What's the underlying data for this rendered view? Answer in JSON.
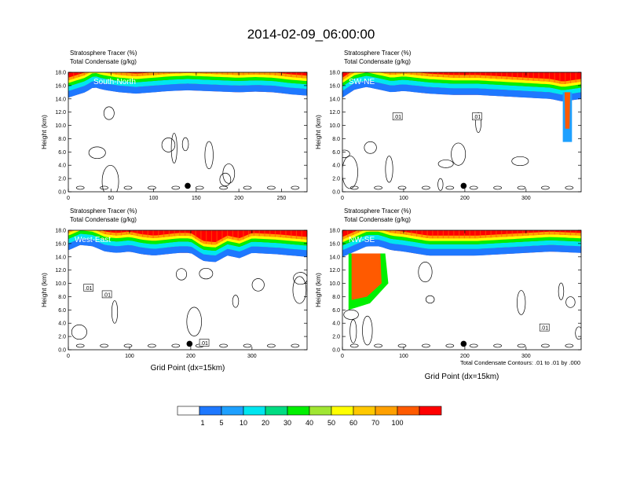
{
  "figure": {
    "title": "2014-02-09_06:00:00",
    "note": "Total Condensate Contours: .01 to .01 by .000",
    "colorbar": {
      "colors": [
        "#ffffff",
        "#1e78ff",
        "#1ea0ff",
        "#00e6f0",
        "#00dc82",
        "#00f000",
        "#a0e632",
        "#ffff00",
        "#ffc800",
        "#ffa000",
        "#ff5a00",
        "#ff0000"
      ],
      "labels": [
        "1",
        "5",
        "10",
        "20",
        "30",
        "40",
        "50",
        "60",
        "70",
        "100"
      ]
    }
  },
  "chart_data": [
    {
      "type": "heatmap",
      "name": "South-North",
      "title_lines": [
        "Stratosphere Tracer   (%)",
        "Total Condensate   (g/kg)"
      ],
      "ylabel": "Height (km)",
      "xlabel": "",
      "xlim": [
        0,
        280
      ],
      "ylim": [
        0,
        18
      ],
      "xticks": [
        0,
        50,
        100,
        150,
        200,
        250
      ],
      "yticks": [
        "0.0",
        "2.0",
        "4.0",
        "6.0",
        "8.0",
        "10.0",
        "12.0",
        "14.0",
        "16.0",
        "18.0"
      ],
      "tropopause_km": [
        [
          0,
          14.2
        ],
        [
          10,
          14.6
        ],
        [
          20,
          15.0
        ],
        [
          30,
          15.8
        ],
        [
          40,
          15.4
        ],
        [
          60,
          15.0
        ],
        [
          80,
          14.8
        ],
        [
          100,
          15.0
        ],
        [
          120,
          15.2
        ],
        [
          140,
          15.3
        ],
        [
          160,
          15.2
        ],
        [
          180,
          15.1
        ],
        [
          200,
          15.0
        ],
        [
          220,
          15.1
        ],
        [
          240,
          15.0
        ],
        [
          260,
          14.7
        ],
        [
          280,
          14.5
        ]
      ],
      "intrusions": [],
      "contour_labels": [],
      "marker_x": 140
    },
    {
      "type": "heatmap",
      "name": "SW-NE",
      "title_lines": [
        "Stratosphere Tracer   (%)",
        "Total Condensate   (g/kg)"
      ],
      "ylabel": "Height (km)",
      "xlabel": "",
      "xlim": [
        0,
        390
      ],
      "ylim": [
        0,
        18
      ],
      "xticks": [
        0,
        100,
        200,
        300
      ],
      "yticks": [
        "0.0",
        "2.0",
        "4.0",
        "6.0",
        "8.0",
        "10.0",
        "12.0",
        "14.0",
        "16.0",
        "18.0"
      ],
      "tropopause_km": [
        [
          0,
          14.2
        ],
        [
          20,
          15.4
        ],
        [
          40,
          15.8
        ],
        [
          60,
          15.4
        ],
        [
          80,
          15.0
        ],
        [
          100,
          15.2
        ],
        [
          140,
          14.8
        ],
        [
          180,
          14.6
        ],
        [
          220,
          14.6
        ],
        [
          260,
          14.4
        ],
        [
          300,
          14.2
        ],
        [
          340,
          14.0
        ],
        [
          360,
          13.6
        ],
        [
          390,
          14.0
        ]
      ],
      "intrusions": [
        {
          "x0": 360,
          "x1": 375,
          "top": 15.0,
          "bottom": 7.5
        }
      ],
      "contour_labels": [
        {
          "x": 90,
          "y": 11.3,
          "text": ".01"
        },
        {
          "x": 220,
          "y": 11.3,
          "text": ".01"
        }
      ],
      "marker_x": 198
    },
    {
      "type": "heatmap",
      "name": "West-East",
      "title_lines": [
        "Stratosphere Tracer   (%)",
        "Total Condensate   (g/kg)"
      ],
      "ylabel": "Height (km)",
      "xlabel": "Grid Point (dx=15km)",
      "xlim": [
        0,
        390
      ],
      "ylim": [
        0,
        18
      ],
      "xticks": [
        0,
        100,
        200,
        300
      ],
      "yticks": [
        "0.0",
        "2.0",
        "4.0",
        "6.0",
        "8.0",
        "10.0",
        "12.0",
        "14.0",
        "16.0",
        "18.0"
      ],
      "tropopause_km": [
        [
          0,
          15.0
        ],
        [
          20,
          15.8
        ],
        [
          40,
          15.6
        ],
        [
          60,
          14.8
        ],
        [
          80,
          14.6
        ],
        [
          100,
          14.8
        ],
        [
          120,
          14.4
        ],
        [
          140,
          14.2
        ],
        [
          160,
          14.4
        ],
        [
          180,
          14.6
        ],
        [
          200,
          14.6
        ],
        [
          220,
          13.4
        ],
        [
          240,
          13.2
        ],
        [
          260,
          14.2
        ],
        [
          280,
          13.8
        ],
        [
          300,
          14.6
        ],
        [
          340,
          14.4
        ],
        [
          390,
          14.0
        ]
      ],
      "intrusions": [],
      "contour_labels": [
        {
          "x": 33,
          "y": 9.3,
          "text": ".01"
        },
        {
          "x": 63,
          "y": 8.3,
          "text": ".01"
        },
        {
          "x": 222,
          "y": 1.0,
          "text": ".01"
        }
      ],
      "marker_x": 198
    },
    {
      "type": "heatmap",
      "name": "NW-SE",
      "title_lines": [
        "Stratosphere Tracer   (%)",
        "Total Condensate   (g/kg)"
      ],
      "ylabel": "Height (km)",
      "xlabel": "Grid Point (dx=15km)",
      "xlim": [
        0,
        390
      ],
      "ylim": [
        0,
        18
      ],
      "xticks": [
        0,
        100,
        200,
        300
      ],
      "yticks": [
        "0.0",
        "2.0",
        "4.0",
        "6.0",
        "8.0",
        "10.0",
        "12.0",
        "14.0",
        "16.0",
        "18.0"
      ],
      "tropopause_km": [
        [
          0,
          14.0
        ],
        [
          20,
          14.8
        ],
        [
          40,
          15.6
        ],
        [
          60,
          15.6
        ],
        [
          80,
          15.0
        ],
        [
          100,
          14.8
        ],
        [
          140,
          14.2
        ],
        [
          180,
          14.2
        ],
        [
          220,
          14.2
        ],
        [
          260,
          14.4
        ],
        [
          300,
          14.6
        ],
        [
          340,
          14.8
        ],
        [
          390,
          14.6
        ]
      ],
      "intrusions": [
        {
          "x0": 10,
          "x1": 70,
          "top": 14.5,
          "bottom": 6.0,
          "wedge": true
        }
      ],
      "contour_labels": [
        {
          "x": 330,
          "y": 3.3,
          "text": ".01"
        }
      ],
      "marker_x": 198
    }
  ]
}
